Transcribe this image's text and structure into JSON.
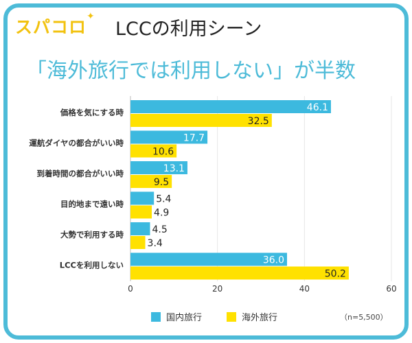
{
  "logo": {
    "text": "スパコロ",
    "spark": "✦"
  },
  "title": "LCCの利用シーン",
  "subtitle": "「海外旅行では利用しない」が半数",
  "note": "（n=5,500）",
  "colors": {
    "domestic": "#3cb9df",
    "overseas": "#ffe100",
    "frame": "#4dbbd8"
  },
  "chart_data": {
    "type": "bar",
    "orientation": "horizontal",
    "categories": [
      "価格を気にする時",
      "運航ダイヤの都合がいい時",
      "到着時間の都合がいい時",
      "目的地まで遠い時",
      "大勢で利用する時",
      "LCCを利用しない"
    ],
    "series": [
      {
        "name": "国内旅行",
        "values": [
          46.1,
          17.7,
          13.1,
          5.4,
          4.5,
          36.0
        ]
      },
      {
        "name": "海外旅行",
        "values": [
          32.5,
          10.6,
          9.5,
          4.9,
          3.4,
          50.2
        ]
      }
    ],
    "value_labels": {
      "国内旅行": [
        "46.1",
        "17.7",
        "13.1",
        "5.4",
        "4.5",
        "36.0"
      ],
      "海外旅行": [
        "32.5",
        "10.6",
        "9.5",
        "4.9",
        "3.4",
        "50.2"
      ]
    },
    "xlim": [
      0,
      60
    ],
    "xticks": [
      "0",
      "20",
      "40",
      "60"
    ],
    "grid": true,
    "legend": "bottom"
  }
}
